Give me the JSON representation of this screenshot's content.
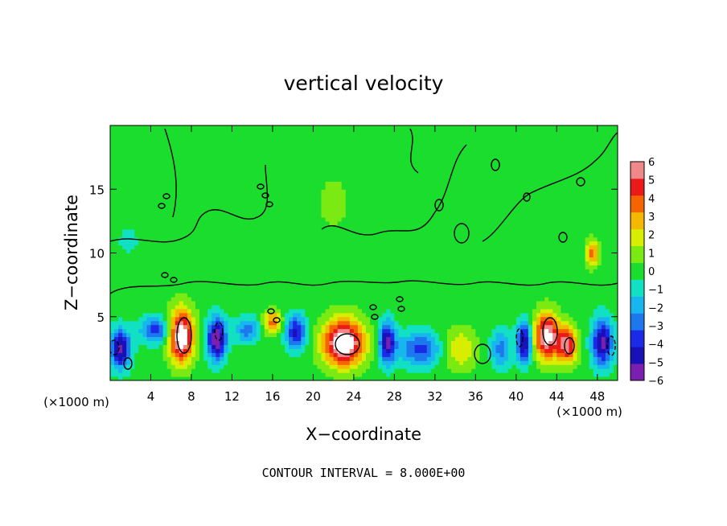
{
  "chart_data": {
    "type": "heatmap",
    "title": "vertical velocity",
    "xlabel": "X−coordinate",
    "ylabel": "Z−coordinate",
    "x_unit_left": "(×1000 m)",
    "x_unit_right": "(×1000 m)",
    "xlim": [
      0,
      50
    ],
    "ylim": [
      0,
      20
    ],
    "x_ticks": [
      4,
      8,
      12,
      16,
      20,
      24,
      28,
      32,
      36,
      40,
      44,
      48
    ],
    "x_tick_labels": [
      "4",
      "8",
      "12",
      "16",
      "20",
      "24",
      "28",
      "32",
      "36",
      "40",
      "44",
      "48"
    ],
    "y_ticks": [
      5,
      10,
      15
    ],
    "y_tick_labels": [
      "5",
      "10",
      "15"
    ],
    "colorbar": {
      "min": -6,
      "max": 6,
      "levels": [
        -6,
        -5,
        -4,
        -3,
        -2,
        -1,
        0,
        1,
        2,
        3,
        4,
        5,
        6
      ],
      "labels": [
        "−6",
        "−5",
        "−4",
        "−3",
        "−2",
        "−1",
        "0",
        "1",
        "2",
        "3",
        "4",
        "5",
        "6"
      ],
      "colors": [
        "#7a1fb0",
        "#1a10b8",
        "#1a2ae6",
        "#1d78ee",
        "#18b6ef",
        "#12e0c2",
        "#1bdd2d",
        "#7bea13",
        "#d8ee00",
        "#f4b800",
        "#f56400",
        "#ea1a18",
        "#f0888a"
      ]
    },
    "blobs": [
      {
        "x": 1,
        "z": 2.5,
        "sx": 1.0,
        "sz": 1.5,
        "w": -6
      },
      {
        "x": 4.5,
        "z": 4.0,
        "sx": 1.5,
        "sz": 1.0,
        "w": -4
      },
      {
        "x": 7,
        "z": 3.5,
        "sx": 1.2,
        "sz": 2.0,
        "w": 8
      },
      {
        "x": 10.5,
        "z": 3.3,
        "sx": 0.9,
        "sz": 1.6,
        "w": -7
      },
      {
        "x": 13.5,
        "z": 4.0,
        "sx": 1.2,
        "sz": 1.0,
        "w": -3
      },
      {
        "x": 16,
        "z": 4.6,
        "sx": 0.9,
        "sz": 0.9,
        "w": 4
      },
      {
        "x": 18.3,
        "z": 3.8,
        "sx": 1.0,
        "sz": 1.3,
        "w": -5
      },
      {
        "x": 23,
        "z": 3.0,
        "sx": 2.0,
        "sz": 1.8,
        "w": 8
      },
      {
        "x": 27.3,
        "z": 3.0,
        "sx": 0.8,
        "sz": 1.6,
        "w": -6
      },
      {
        "x": 30.5,
        "z": 2.5,
        "sx": 2.0,
        "sz": 1.3,
        "w": -4
      },
      {
        "x": 34.5,
        "z": 2.5,
        "sx": 1.6,
        "sz": 1.6,
        "w": 2.5
      },
      {
        "x": 38.5,
        "z": 2.5,
        "sx": 1.0,
        "sz": 1.5,
        "w": -3
      },
      {
        "x": 40.8,
        "z": 3.0,
        "sx": 0.7,
        "sz": 1.6,
        "w": -6
      },
      {
        "x": 43,
        "z": 3.5,
        "sx": 1.2,
        "sz": 1.8,
        "w": 7
      },
      {
        "x": 45,
        "z": 2.8,
        "sx": 1.0,
        "sz": 1.4,
        "w": 6
      },
      {
        "x": 48.5,
        "z": 3.0,
        "sx": 1.0,
        "sz": 1.8,
        "w": -6
      },
      {
        "x": 47.5,
        "z": 10.0,
        "sx": 0.6,
        "sz": 1.0,
        "w": 4
      },
      {
        "x": 6,
        "z": 12,
        "sx": 3,
        "sz": 4,
        "w": 0.5
      },
      {
        "x": 22,
        "z": 14,
        "sx": 3,
        "sz": 4,
        "w": 0.6
      },
      {
        "x": 2,
        "z": 11,
        "sx": 2,
        "sz": 2,
        "w": -0.7
      },
      {
        "x": 35,
        "z": 9,
        "sx": 2,
        "sz": 2,
        "w": -0.4
      }
    ]
  },
  "footer": {
    "contour_interval": "CONTOUR INTERVAL = 8.000E+00"
  }
}
